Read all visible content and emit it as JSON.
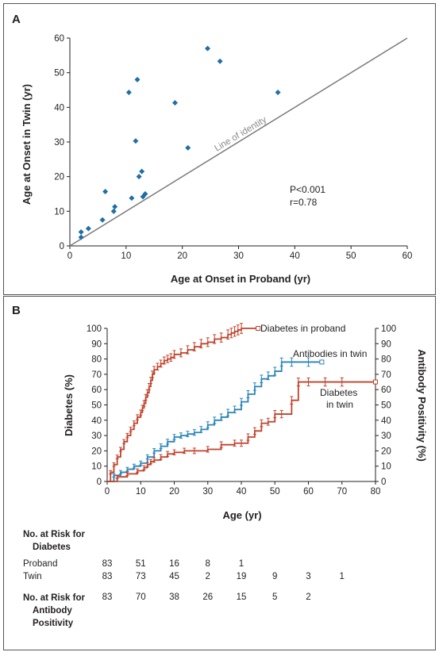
{
  "panel_a": {
    "label": "A",
    "annotations": [
      "P<0.001",
      "r=0.78"
    ],
    "identity_label": "Line of identity"
  },
  "panel_b": {
    "label": "B",
    "series_labels": {
      "proband": "Diabetes in proband",
      "antibodies": "Antibodies in twin",
      "twin_line1": "Diabetes",
      "twin_line2": "in twin"
    }
  },
  "colors": {
    "points": "#1f6fa6",
    "proband": "#c0432c",
    "antibodies": "#2a85b8",
    "twin": "#c0432c",
    "identity": "#7a7a7a"
  },
  "risk_table": {
    "diabetes_title_1": "No. at Risk for",
    "diabetes_title_2": "Diabetes",
    "proband_label": "Proband",
    "twin_label": "Twin",
    "proband_counts": [
      "83",
      "51",
      "16",
      "8",
      "1"
    ],
    "twin_counts": [
      "83",
      "73",
      "45",
      "2",
      "19",
      "9",
      "3",
      "1"
    ],
    "antibody_title_1": "No. at Risk for",
    "antibody_title_2": "Antibody",
    "antibody_title_3": "Positivity",
    "antibody_counts": [
      "83",
      "70",
      "38",
      "26",
      "15",
      "5",
      "2"
    ]
  },
  "chart_data": [
    {
      "type": "scatter",
      "xlabel": "Age at Onset in Proband (yr)",
      "ylabel": "Age at Onset in Twin (yr)",
      "xlim": [
        0,
        60
      ],
      "ylim": [
        0,
        60
      ],
      "xticks": [
        "0",
        "10",
        "20",
        "30",
        "40",
        "50",
        "60"
      ],
      "yticks": [
        "0",
        "10",
        "20",
        "30",
        "40",
        "50",
        "60"
      ],
      "identity_line": true,
      "points": [
        {
          "x": 2,
          "y": 2.5
        },
        {
          "x": 2,
          "y": 4
        },
        {
          "x": 3.3,
          "y": 5
        },
        {
          "x": 5.8,
          "y": 7.5
        },
        {
          "x": 6.3,
          "y": 15.7
        },
        {
          "x": 7.8,
          "y": 10
        },
        {
          "x": 8,
          "y": 11.3
        },
        {
          "x": 10.5,
          "y": 44.3
        },
        {
          "x": 11,
          "y": 13.8
        },
        {
          "x": 11.7,
          "y": 30.3
        },
        {
          "x": 12,
          "y": 48
        },
        {
          "x": 12.3,
          "y": 20
        },
        {
          "x": 12.8,
          "y": 21.5
        },
        {
          "x": 13,
          "y": 14.2
        },
        {
          "x": 13.4,
          "y": 15
        },
        {
          "x": 18.7,
          "y": 41.3
        },
        {
          "x": 21,
          "y": 28.3
        },
        {
          "x": 24.5,
          "y": 57
        },
        {
          "x": 26.7,
          "y": 53.3
        },
        {
          "x": 37,
          "y": 44.3
        }
      ]
    },
    {
      "type": "line",
      "xlabel": "Age (yr)",
      "ylabel": "Diabetes (%)",
      "ylabel_right": "Antibody Positivity (%)",
      "xlim": [
        0,
        80
      ],
      "ylim": [
        0,
        100
      ],
      "xticks": [
        "0",
        "10",
        "20",
        "30",
        "40",
        "50",
        "60",
        "70",
        "80"
      ],
      "yticks": [
        "0",
        "10",
        "20",
        "30",
        "40",
        "50",
        "60",
        "70",
        "80",
        "90",
        "100"
      ],
      "series": [
        {
          "name": "Diabetes in proband",
          "x": [
            0,
            1,
            2,
            3,
            4,
            5,
            6,
            7,
            8,
            9,
            10,
            10.5,
            11,
            11.5,
            12,
            12.5,
            13,
            13.5,
            14,
            15,
            16,
            17,
            18,
            19,
            20,
            22,
            24,
            26,
            28,
            30,
            32,
            34,
            36,
            37,
            38,
            39,
            40,
            45
          ],
          "y": [
            0,
            6,
            11,
            16,
            21,
            26,
            30,
            34,
            38,
            42,
            45,
            48,
            51,
            55,
            58,
            62,
            66,
            70,
            73,
            75,
            77,
            79,
            80,
            81,
            83,
            84,
            86,
            88,
            90,
            91,
            93,
            94,
            96,
            97,
            98,
            99,
            100,
            100
          ]
        },
        {
          "name": "Antibodies in twin",
          "x": [
            0,
            2,
            4,
            6,
            8,
            10,
            12,
            14,
            16,
            18,
            20,
            22,
            24,
            26,
            28,
            30,
            32,
            34,
            36,
            38,
            40,
            42,
            44,
            46,
            48,
            50,
            52,
            55,
            60,
            64
          ],
          "y": [
            0,
            4,
            6,
            8,
            10,
            12,
            16,
            20,
            23,
            26,
            29,
            30,
            31,
            32,
            34,
            37,
            40,
            42,
            45,
            47,
            52,
            57,
            62,
            67,
            69,
            72,
            78,
            78,
            78,
            78
          ]
        },
        {
          "name": "Diabetes in twin",
          "x": [
            0,
            3,
            6,
            9,
            11,
            12,
            13,
            14,
            16,
            18,
            20,
            23,
            26,
            30,
            34,
            38,
            40,
            42,
            44,
            46,
            48,
            50,
            52,
            55,
            57,
            60,
            65,
            70,
            80
          ],
          "y": [
            0,
            3,
            5,
            7,
            9,
            11,
            13,
            14,
            16,
            18,
            19,
            20,
            20,
            21,
            24,
            25,
            25,
            29,
            33,
            38,
            39,
            44,
            44,
            53,
            65,
            65,
            65,
            65,
            65
          ]
        }
      ]
    }
  ]
}
